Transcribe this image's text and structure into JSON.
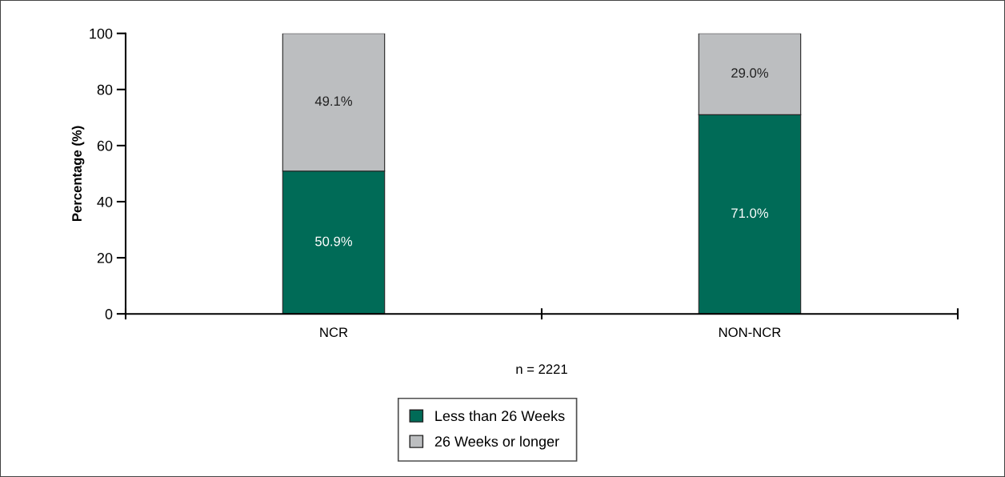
{
  "chart_data": {
    "type": "bar",
    "stacked": true,
    "categories": [
      "NCR",
      "NON-NCR"
    ],
    "series": [
      {
        "name": "Less than 26 Weeks",
        "color": "#006b57",
        "values": [
          50.9,
          71.0
        ],
        "value_labels": [
          "50.9%",
          "71.0%"
        ]
      },
      {
        "name": "26 Weeks or longer",
        "color": "#bcbec0",
        "values": [
          49.1,
          29.0
        ],
        "value_labels": [
          "49.1%",
          "29.0%"
        ]
      }
    ],
    "ylabel": "Percentage (%)",
    "xlabel": "n = 2221",
    "ylim": [
      0,
      100
    ],
    "yticks": [
      0,
      20,
      40,
      60,
      80,
      100
    ],
    "grid": false,
    "legend": "bottom"
  }
}
